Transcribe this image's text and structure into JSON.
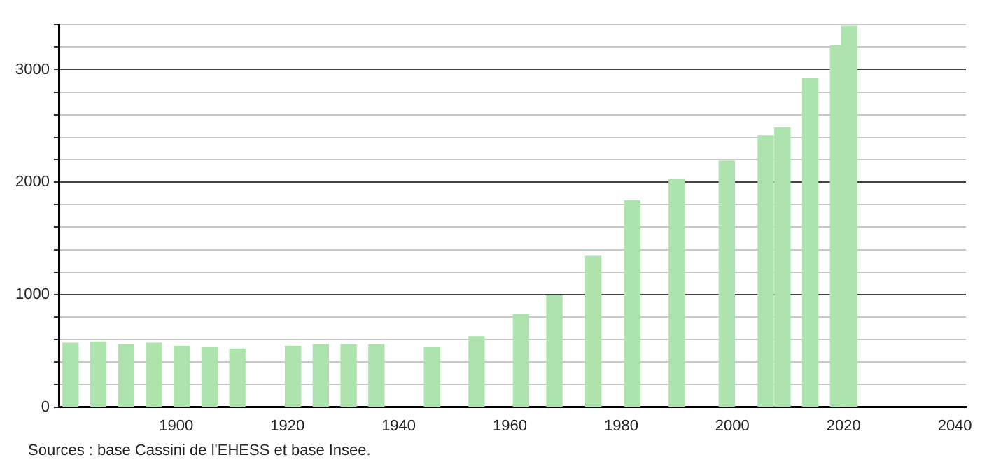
{
  "chart_data": {
    "type": "bar",
    "x": [
      1881,
      1886,
      1891,
      1896,
      1901,
      1906,
      1911,
      1921,
      1926,
      1931,
      1936,
      1946,
      1954,
      1962,
      1968,
      1975,
      1982,
      1990,
      1999,
      2006,
      2009,
      2014,
      2019,
      2021
    ],
    "values": [
      569,
      580,
      557,
      569,
      541,
      529,
      518,
      541,
      557,
      557,
      557,
      529,
      627,
      824,
      992,
      1341,
      1835,
      2024,
      2188,
      2412,
      2482,
      2918,
      3212,
      3388
    ],
    "color": "#aee3ae",
    "xlim": [
      1879,
      2042
    ],
    "xticks": [
      1900,
      1920,
      1940,
      1960,
      1980,
      2000,
      2020,
      2040
    ],
    "ylim": [
      0,
      3400
    ],
    "yticks": [
      0,
      {
        "value": 200,
        "label": null
      },
      {
        "value": 400,
        "label": null
      },
      {
        "value": 600,
        "label": null
      },
      {
        "value": 800,
        "label": null
      },
      1000,
      {
        "value": 1200,
        "label": null
      },
      {
        "value": 1400,
        "label": null
      },
      {
        "value": 1600,
        "label": null
      },
      {
        "value": 1800,
        "label": null
      },
      2000,
      {
        "value": 2200,
        "label": null
      },
      {
        "value": 2400,
        "label": null
      },
      {
        "value": 2600,
        "label": null
      },
      {
        "value": 2800,
        "label": null
      },
      3000,
      {
        "value": 3200,
        "label": null
      },
      {
        "value": 3400,
        "label": null
      }
    ],
    "grid": "y",
    "legend": false,
    "annotations": [
      "Sources : base Cassini de l'EHESS et base Insee."
    ]
  }
}
